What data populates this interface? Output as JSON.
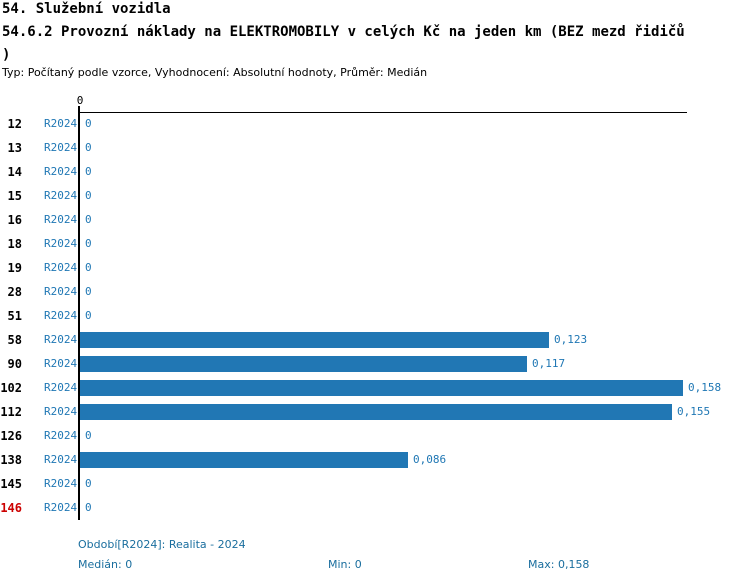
{
  "header": {
    "line1": "54. Služební vozidla",
    "line2": "54.6.2 Provozní náklady na ELEKTROMOBILY v celých Kč na jeden km (BEZ mezd řidičů",
    "line3": ")",
    "meta": "Typ: Počítaný podle vzorce, Vyhodnocení: Absolutní hodnoty, Průměr: Medián"
  },
  "colors": {
    "bar": "#2177B4",
    "blue_text": "#1F77B4",
    "footer_text": "#1A6E9E",
    "highlight_red": "#CC0000",
    "axis_black": "#000000"
  },
  "chart_data": {
    "type": "bar",
    "orientation": "horizontal",
    "title": "54.6.2 Provozní náklady na ELEKTROMOBILY v celých Kč na jeden km (BEZ mezd řidičů)",
    "categories": [
      "12",
      "13",
      "14",
      "15",
      "16",
      "18",
      "19",
      "28",
      "51",
      "58",
      "90",
      "102",
      "112",
      "126",
      "138",
      "145",
      "146"
    ],
    "series": [
      {
        "name": "R2024",
        "values": [
          0,
          0,
          0,
          0,
          0,
          0,
          0,
          0,
          0,
          0.123,
          0.117,
          0.158,
          0.155,
          0,
          0.086,
          0,
          0
        ],
        "value_labels": [
          "0",
          "0",
          "0",
          "0",
          "0",
          "0",
          "0",
          "0",
          "0",
          "0,123",
          "0,117",
          "0,158",
          "0,155",
          "0",
          "0,086",
          "0",
          "0"
        ]
      }
    ],
    "xlim": [
      0,
      0.158
    ],
    "axis_top_tick_label": "0",
    "highlighted_category": "146",
    "grid": false,
    "legend": false
  },
  "footer": {
    "period": "Období[R2024]: Realita - 2024",
    "median": "Medián: 0",
    "min": "Min: 0",
    "max": "Max: 0,158"
  }
}
